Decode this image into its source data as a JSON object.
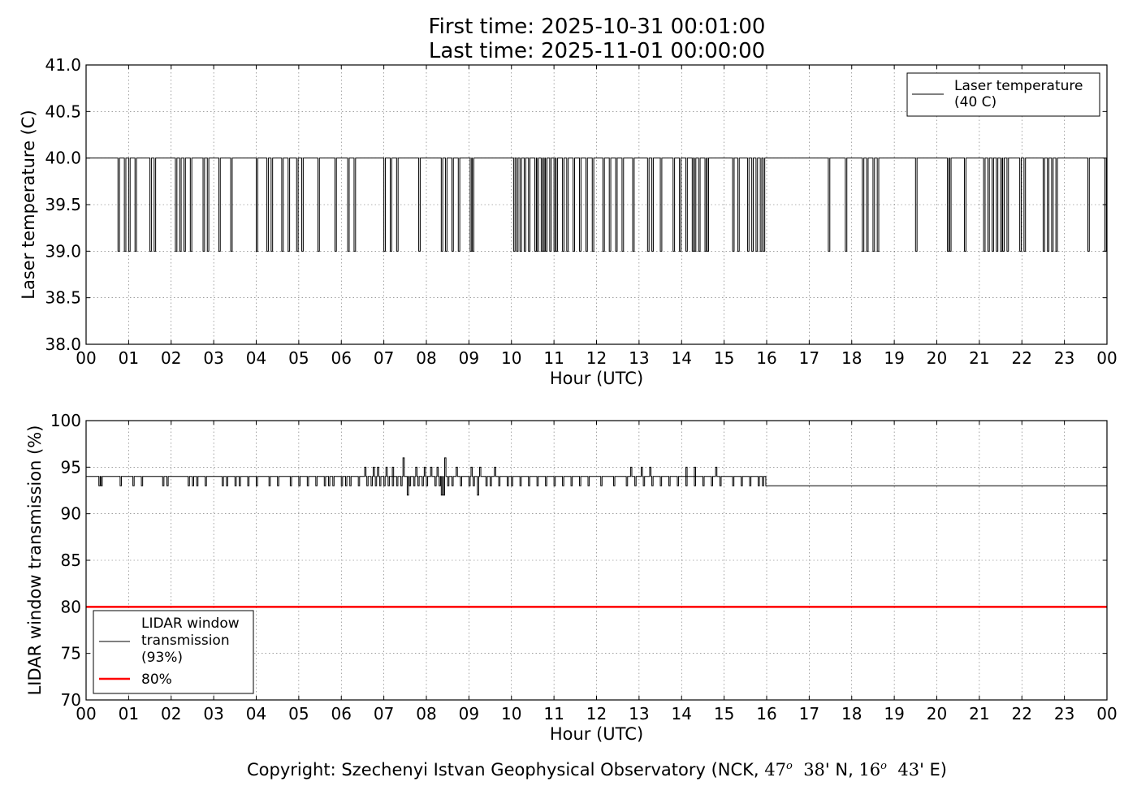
{
  "header": {
    "first_time": "First time: 2025-10-31 00:01:00",
    "last_time": "Last time: 2025-11-01 00:00:00"
  },
  "footer": {
    "prefix": "Copyright: Szechenyi Istvan Geophysical Observatory (NCK, ",
    "lat_deg": "47",
    "lat_min": "38",
    "lat_suffix": "' N, ",
    "lon_deg": "16",
    "lon_min": "43",
    "lon_suffix": "' E)",
    "degree_symbol": "o"
  },
  "chart_data": [
    {
      "type": "line",
      "xlabel": "Hour (UTC)",
      "ylabel": "Laser temperature (C)",
      "xlim": [
        0,
        24
      ],
      "ylim": [
        38.0,
        41.0
      ],
      "x_ticks": [
        "00",
        "01",
        "02",
        "03",
        "04",
        "05",
        "06",
        "07",
        "08",
        "09",
        "10",
        "11",
        "12",
        "13",
        "14",
        "15",
        "16",
        "17",
        "18",
        "19",
        "20",
        "21",
        "22",
        "23",
        "00"
      ],
      "y_ticks": [
        "38.0",
        "38.5",
        "39.0",
        "39.5",
        "40.0",
        "40.5",
        "41.0"
      ],
      "grid": true,
      "legend_position": "upper right",
      "series": [
        {
          "name": "Laser temperature\n(40 C)",
          "color": "#000000",
          "baseline": 40.0,
          "dip_value": 39.0,
          "dips_hours": [
            0.75,
            0.9,
            1.0,
            1.15,
            1.5,
            1.6,
            2.1,
            2.2,
            2.3,
            2.45,
            2.75,
            2.85,
            3.12,
            3.4,
            4.0,
            4.25,
            4.35,
            4.6,
            4.75,
            4.95,
            5.07,
            5.45,
            5.85,
            6.15,
            6.3,
            7.0,
            7.15,
            7.3,
            7.82,
            8.35,
            8.45,
            8.6,
            8.75,
            9.03,
            9.08,
            10.05,
            10.12,
            10.2,
            10.3,
            10.4,
            10.55,
            10.6,
            10.7,
            10.75,
            10.8,
            10.9,
            11.0,
            11.05,
            11.2,
            11.3,
            11.45,
            11.6,
            11.75,
            11.9,
            12.15,
            12.3,
            12.45,
            12.6,
            12.85,
            13.2,
            13.3,
            13.5,
            13.8,
            13.95,
            14.1,
            14.25,
            14.3,
            14.4,
            14.55,
            14.6,
            15.2,
            15.32,
            15.55,
            15.65,
            15.75,
            15.85,
            15.92,
            17.45,
            17.85,
            18.25,
            18.35,
            18.5,
            18.6,
            19.5,
            20.25,
            20.3,
            20.65,
            21.1,
            21.2,
            21.3,
            21.4,
            21.5,
            21.55,
            21.65,
            21.95,
            22.05,
            22.5,
            22.6,
            22.7,
            22.8,
            23.55,
            23.95
          ]
        }
      ]
    },
    {
      "type": "line",
      "xlabel": "Hour (UTC)",
      "ylabel": "LIDAR window transmission (%)",
      "xlim": [
        0,
        24
      ],
      "ylim": [
        70,
        100
      ],
      "x_ticks": [
        "00",
        "01",
        "02",
        "03",
        "04",
        "05",
        "06",
        "07",
        "08",
        "09",
        "10",
        "11",
        "12",
        "13",
        "14",
        "15",
        "16",
        "17",
        "18",
        "19",
        "20",
        "21",
        "22",
        "23",
        "00"
      ],
      "y_ticks": [
        "70",
        "75",
        "80",
        "85",
        "90",
        "95",
        "100"
      ],
      "grid": true,
      "legend_position": "lower left",
      "series": [
        {
          "name": "LIDAR window\ntransmission\n(93%)",
          "color": "#000000",
          "baseline_before_16": 94,
          "baseline_after_16": 93,
          "drop_hours": [
            0.3,
            0.35,
            0.8,
            1.1,
            1.3,
            1.8,
            1.9,
            2.4,
            2.5,
            2.6,
            2.8,
            3.2,
            3.3,
            3.5,
            3.6,
            3.8,
            4.0,
            4.3,
            4.5,
            4.8,
            5.0,
            5.2,
            5.4,
            5.6,
            5.7,
            5.8,
            6.0,
            6.1,
            6.2,
            6.4,
            6.6,
            6.7,
            6.8,
            6.9,
            7.0,
            7.1,
            7.2,
            7.3,
            7.4,
            7.6,
            7.7,
            7.8,
            7.9,
            8.0,
            8.2,
            8.3,
            8.5,
            8.6,
            8.8,
            9.0,
            9.1,
            9.4,
            9.5,
            9.7,
            9.9,
            10.0,
            10.2,
            10.4,
            10.6,
            10.8,
            11.0,
            11.2,
            11.4,
            11.6,
            11.8,
            12.1,
            12.4,
            12.7,
            12.9,
            13.1,
            13.3,
            13.5,
            13.7,
            13.9,
            14.1,
            14.3,
            14.5,
            14.7,
            14.9,
            15.2,
            15.4,
            15.6,
            15.8,
            15.9
          ],
          "spikes_up": [
            [
              6.55,
              95
            ],
            [
              6.75,
              95
            ],
            [
              6.85,
              95
            ],
            [
              7.05,
              95
            ],
            [
              7.2,
              95
            ],
            [
              7.45,
              96
            ],
            [
              7.75,
              95
            ],
            [
              7.95,
              95
            ],
            [
              8.1,
              95
            ],
            [
              8.25,
              95
            ],
            [
              8.43,
              96
            ],
            [
              8.7,
              95
            ],
            [
              9.05,
              95
            ],
            [
              9.25,
              95
            ],
            [
              9.6,
              95
            ],
            [
              12.8,
              95
            ],
            [
              13.05,
              95
            ],
            [
              13.25,
              95
            ],
            [
              14.1,
              95
            ],
            [
              14.3,
              95
            ],
            [
              14.8,
              95
            ]
          ],
          "spikes_down": [
            [
              7.55,
              92
            ],
            [
              8.35,
              92
            ],
            [
              8.4,
              92
            ],
            [
              9.2,
              92
            ]
          ]
        },
        {
          "name": "80%",
          "color": "#ff0000",
          "constant": 80
        }
      ]
    }
  ]
}
